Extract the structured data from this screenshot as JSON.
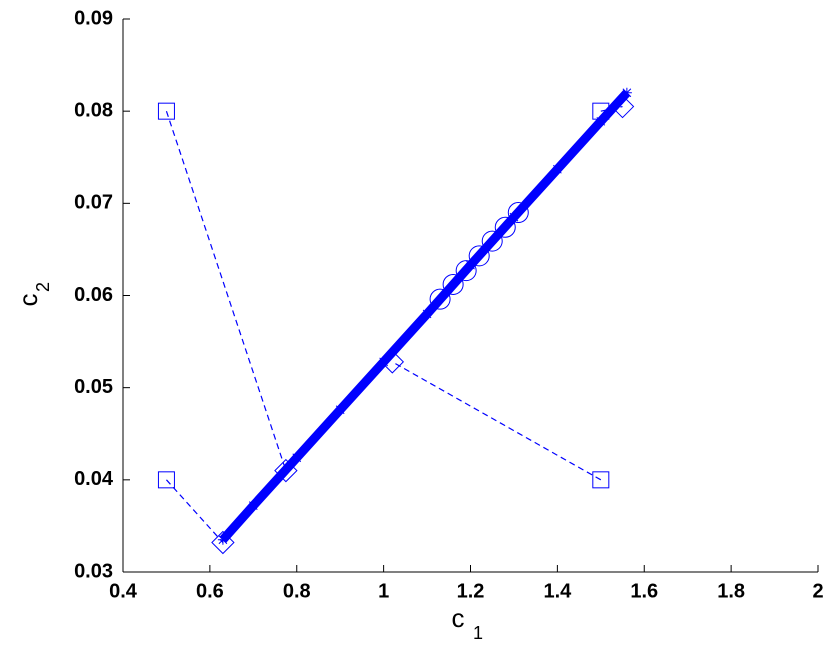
{
  "chart_data": {
    "type": "scatter",
    "xlabel": {
      "text": "c",
      "subscript": "1"
    },
    "ylabel": {
      "text": "c",
      "subscript": "2"
    },
    "xlim": [
      0.4,
      2
    ],
    "ylim": [
      0.03,
      0.09
    ],
    "xticks": [
      0.4,
      0.6,
      0.8,
      1,
      1.2,
      1.4,
      1.6,
      1.8,
      2
    ],
    "yticks": [
      0.03,
      0.04,
      0.05,
      0.06,
      0.07,
      0.08,
      0.09
    ],
    "series": [
      {
        "color": "#0000ff",
        "marker": "none",
        "line": "dashed",
        "x": [
          0.5,
          0.775
        ],
        "y": [
          0.08,
          0.041
        ]
      },
      {
        "color": "#0000ff",
        "marker": "none",
        "line": "dashed",
        "x": [
          0.5,
          0.63
        ],
        "y": [
          0.04,
          0.0332
        ]
      },
      {
        "color": "#0000ff",
        "marker": "none",
        "line": "dashed",
        "x": [
          1.5,
          1.02
        ],
        "y": [
          0.04,
          0.0528
        ]
      },
      {
        "color": "#0000ff",
        "marker": "none",
        "line": "dashed",
        "x": [
          1.5,
          1.55
        ],
        "y": [
          0.08,
          0.0805
        ]
      },
      {
        "color": "#0000ff",
        "marker": "asterisk",
        "line": "thick",
        "x": [
          0.63,
          0.7,
          0.8,
          0.9,
          1.0,
          1.1,
          1.2,
          1.3,
          1.4,
          1.5,
          1.56
        ],
        "y": [
          0.0335,
          0.0372,
          0.0424,
          0.0476,
          0.0528,
          0.058,
          0.0633,
          0.0685,
          0.0737,
          0.0789,
          0.082
        ]
      },
      {
        "color": "#0000ff",
        "marker": "circle",
        "line": "none",
        "x": [
          1.13,
          1.16,
          1.19,
          1.22,
          1.25,
          1.28,
          1.31
        ],
        "y": [
          0.0596,
          0.0612,
          0.0627,
          0.0643,
          0.0659,
          0.0674,
          0.069
        ]
      },
      {
        "color": "#0000ff",
        "marker": "square",
        "line": "none",
        "x": [
          0.5,
          0.5,
          1.5,
          1.5
        ],
        "y": [
          0.08,
          0.04,
          0.08,
          0.04
        ]
      },
      {
        "color": "#0000ff",
        "marker": "diamond",
        "line": "none",
        "x": [
          0.63,
          0.775,
          1.02,
          1.55
        ],
        "y": [
          0.0332,
          0.041,
          0.0528,
          0.0805
        ]
      }
    ]
  }
}
